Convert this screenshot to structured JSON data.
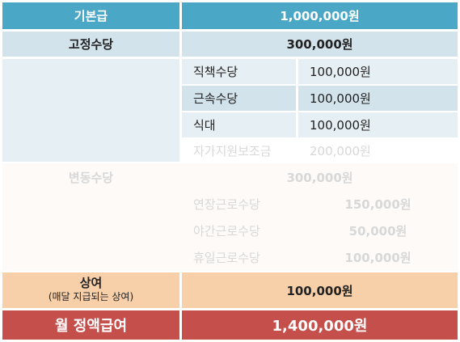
{
  "rows": {
    "base": {
      "label": "기본급",
      "value": "1,000,000원"
    },
    "fixed": {
      "label": "고정수당",
      "value": "300,000원"
    },
    "position": {
      "label": "직책수당",
      "value": "100,000원"
    },
    "tenure": {
      "label": "근속수당",
      "value": "100,000원"
    },
    "meal": {
      "label": "식대",
      "value": "100,000원"
    },
    "self_dev": {
      "label": "자가지원보조금",
      "value": "200,000원"
    },
    "variable": {
      "label": "변동수당",
      "value": "300,000원"
    },
    "overtime": {
      "label": "연장근로수당",
      "value": "150,000원"
    },
    "night": {
      "label": "야간근로수당",
      "value": "50,000원"
    },
    "holiday": {
      "label": "휴일근로수당",
      "value": "100,000원"
    },
    "bonus": {
      "label": "상여",
      "sublabel": "(매달 지급되는 상여)",
      "value": "100,000원"
    },
    "total": {
      "label": "월 정액급여",
      "value": "1,400,000원"
    }
  },
  "colors": {
    "header_blue": "#4ba7c6",
    "light_blue": "#d3e3ec",
    "pale_blue": "#e6eff4",
    "peach": "#f7cfa8",
    "total_red": "#c44f4b"
  }
}
